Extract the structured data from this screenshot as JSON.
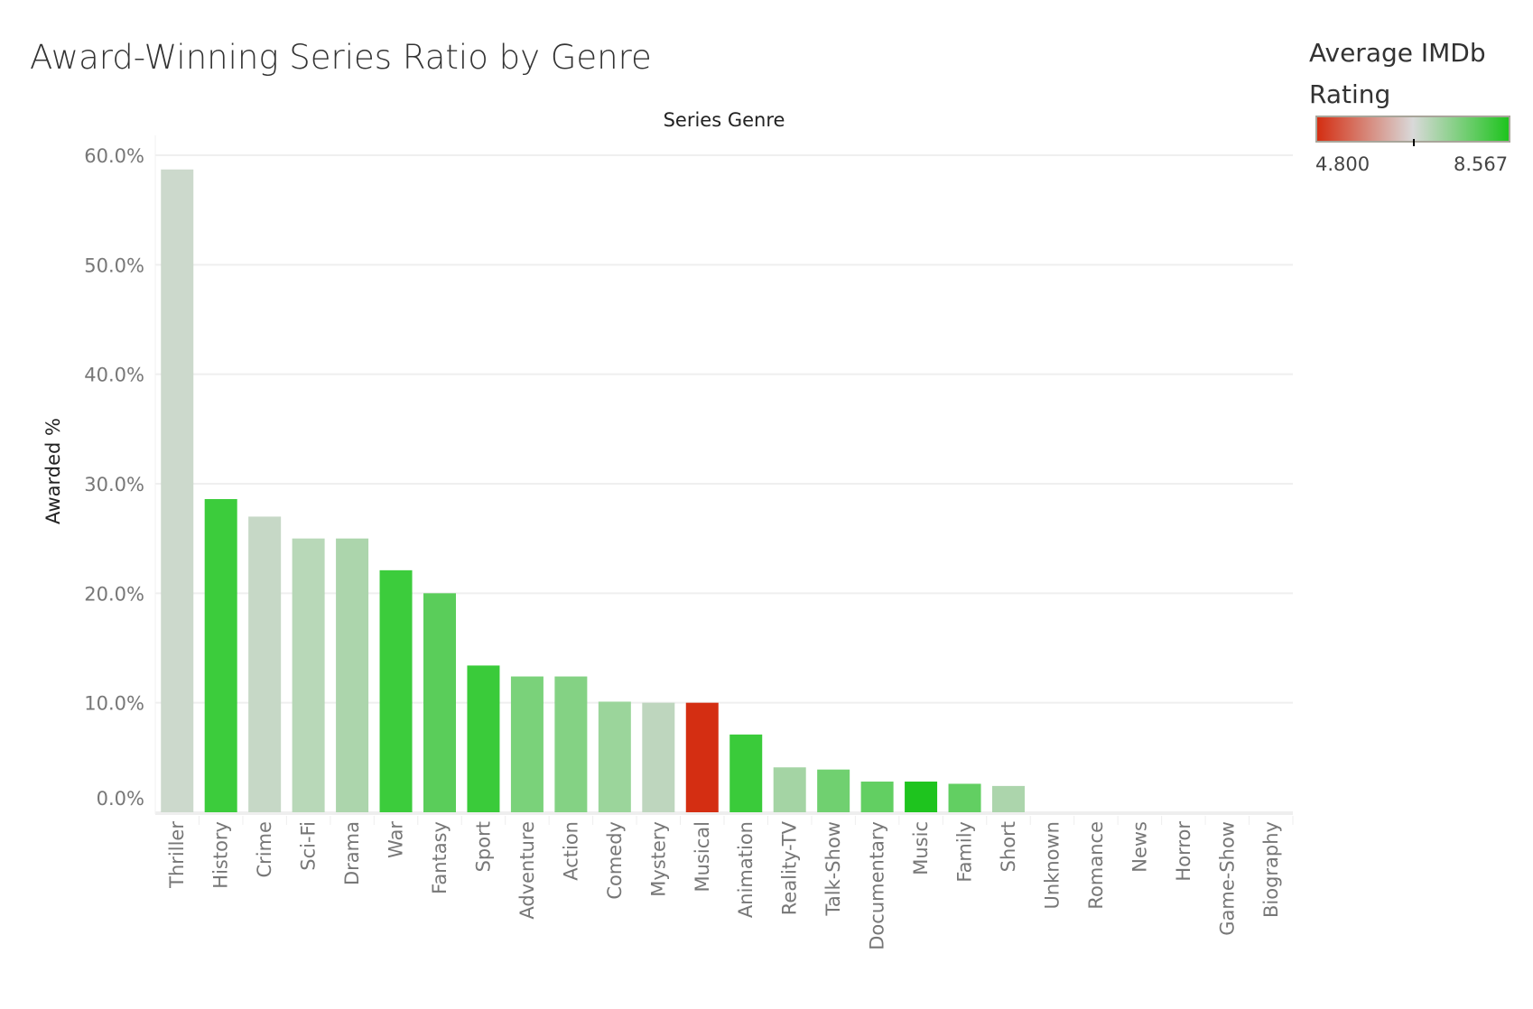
{
  "chart_data": {
    "type": "bar",
    "title": "Award-Winning Series Ratio by Genre",
    "xlabel": "Series Genre",
    "ylabel": "Awarded %",
    "ylim": [
      0,
      60
    ],
    "yticks": [
      "0.0%",
      "10.0%",
      "20.0%",
      "30.0%",
      "40.0%",
      "50.0%",
      "60.0%"
    ],
    "ytick_values": [
      0,
      10,
      20,
      30,
      40,
      50,
      60
    ],
    "grid": true,
    "categories": [
      "Thriller",
      "History",
      "Crime",
      "Sci-Fi",
      "Drama",
      "War",
      "Fantasy",
      "Sport",
      "Adventure",
      "Action",
      "Comedy",
      "Mystery",
      "Musical",
      "Animation",
      "Reality-TV",
      "Talk-Show",
      "Documentary",
      "Music",
      "Family",
      "Short",
      "Unknown",
      "Romance",
      "News",
      "Horror",
      "Game-Show",
      "Biography"
    ],
    "values": [
      58.7,
      28.6,
      27.0,
      25.0,
      25.0,
      22.1,
      20.0,
      13.4,
      12.4,
      12.4,
      10.1,
      10.0,
      10.0,
      7.1,
      4.1,
      3.9,
      2.8,
      2.8,
      2.6,
      2.4,
      0,
      0,
      0,
      0,
      0,
      0
    ],
    "colors": [
      "#ccd9cc",
      "#3ccc3c",
      "#c6d8c6",
      "#b8d8b8",
      "#acd5ac",
      "#3ccc3c",
      "#5acd5a",
      "#3acb3a",
      "#7ad27a",
      "#84d284",
      "#9bd59b",
      "#bed6be",
      "#d42e12",
      "#3acb3a",
      "#a4d4a4",
      "#70d070",
      "#62cf62",
      "#1ec41e",
      "#62cf62",
      "#acd5ac",
      "#ffffff",
      "#ffffff",
      "#ffffff",
      "#ffffff",
      "#ffffff",
      "#ffffff"
    ],
    "legend": {
      "title": "Average IMDb Rating",
      "min_label": "4.800",
      "max_label": "8.567",
      "color_low": "#d42e12",
      "color_mid": "#d9d9d9",
      "color_high": "#1ec41e",
      "placement": "top-right"
    }
  }
}
